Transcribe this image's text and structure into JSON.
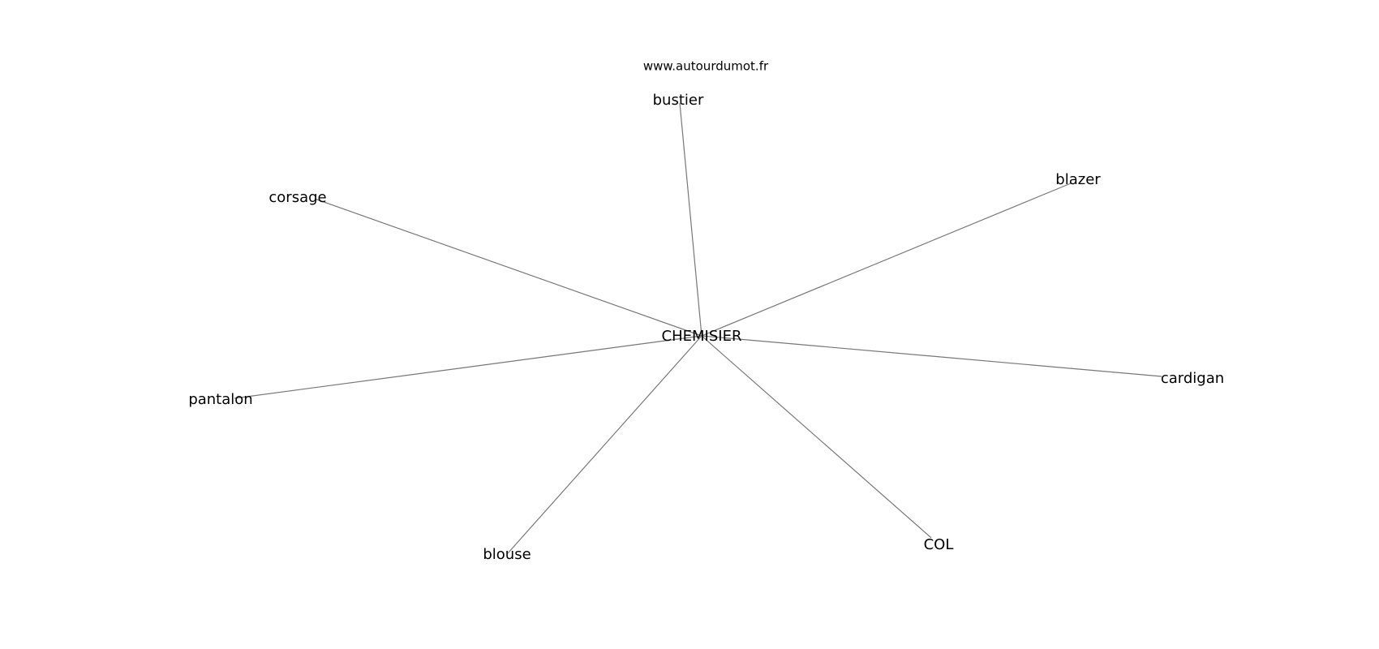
{
  "source": "www.autourdumot.fr",
  "center": {
    "label": "CHEMISIER"
  },
  "nodes": [
    {
      "label": "bustier"
    },
    {
      "label": "blazer"
    },
    {
      "label": "corsage"
    },
    {
      "label": "cardigan"
    },
    {
      "label": "pantalon"
    },
    {
      "label": "blouse"
    },
    {
      "label": "COL"
    }
  ],
  "colors": {
    "edge": "#777777",
    "text": "#000000"
  }
}
